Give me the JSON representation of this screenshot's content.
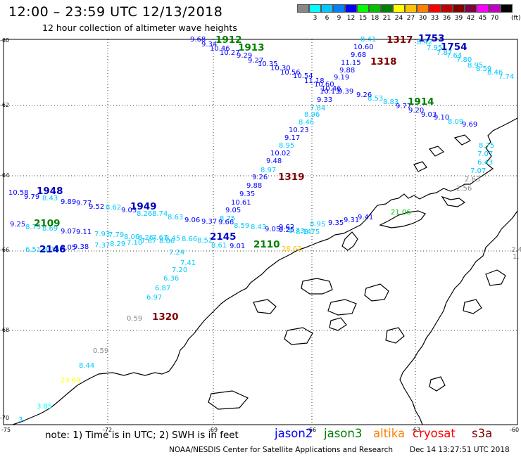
{
  "title": "12:00  –  23:59  UTC  12/13/2018",
  "subtitle": "12 hour collection of altimeter wave heights",
  "legend": {
    "colors": [
      "#888888",
      "#00ffff",
      "#00c8ff",
      "#0080ff",
      "#0000ff",
      "#00ff00",
      "#00c000",
      "#008000",
      "#ffff00",
      "#ffc000",
      "#ff8000",
      "#ff0000",
      "#c00000",
      "#800000",
      "#800040",
      "#ff00ff",
      "#c000c0",
      "#000000"
    ],
    "labels": [
      "",
      "3",
      "6",
      "9",
      "12",
      "15",
      "18",
      "21",
      "24",
      "27",
      "30",
      "33",
      "36",
      "39",
      "42",
      "45",
      "70",
      ""
    ],
    "unit": "(ft)"
  },
  "axes": {
    "lat_labels": [
      "-60",
      "-62",
      "-64",
      "-66",
      "-68",
      "-70"
    ],
    "lon_labels": [
      "-75",
      "-72",
      "-69",
      "-66",
      "-63",
      "-60"
    ]
  },
  "satellites": [
    {
      "name": "jason2",
      "color": "#0000ff"
    },
    {
      "name": "jason3",
      "color": "#008000"
    },
    {
      "name": "altika",
      "color": "#ff8000"
    },
    {
      "name": "cryosat",
      "color": "#ff0000"
    },
    {
      "name": "s3a",
      "color": "#800000"
    }
  ],
  "pass_times": [
    {
      "text": "1912",
      "color": "#008000"
    },
    {
      "text": "1913",
      "color": "#008000"
    },
    {
      "text": "1317",
      "color": "#800000"
    },
    {
      "text": "1753",
      "color": "#0000c0"
    },
    {
      "text": "1754",
      "color": "#0000c0"
    },
    {
      "text": "1318",
      "color": "#800000"
    },
    {
      "text": "1914",
      "color": "#008000"
    },
    {
      "text": "1319",
      "color": "#800000"
    },
    {
      "text": "1948",
      "color": "#0000c0"
    },
    {
      "text": "1949",
      "color": "#0000c0"
    },
    {
      "text": "2109",
      "color": "#008000"
    },
    {
      "text": "2146",
      "color": "#0000c0"
    },
    {
      "text": "2145",
      "color": "#0000c0"
    },
    {
      "text": "2110",
      "color": "#008000"
    },
    {
      "text": "1320",
      "color": "#800000"
    }
  ],
  "wave_heights": [
    {
      "text": "9.68",
      "color": "#0000ff"
    },
    {
      "text": "9.34",
      "color": "#0000ff"
    },
    {
      "text": "10.46",
      "color": "#0000ff"
    },
    {
      "text": "10.27",
      "color": "#0000ff"
    },
    {
      "text": "9.29",
      "color": "#0000ff"
    },
    {
      "text": "9.27",
      "color": "#0000ff"
    },
    {
      "text": "10.35",
      "color": "#0000ff"
    },
    {
      "text": "10.30",
      "color": "#0000ff"
    },
    {
      "text": "10.56",
      "color": "#0000ff"
    },
    {
      "text": "10.54",
      "color": "#0000ff"
    },
    {
      "text": "11.18",
      "color": "#0000ff"
    },
    {
      "text": "10.60",
      "color": "#0000ff"
    },
    {
      "text": "10.46",
      "color": "#0000ff"
    },
    {
      "text": "9.39",
      "color": "#0000ff"
    },
    {
      "text": "9.26",
      "color": "#0000ff"
    },
    {
      "text": "8.41",
      "color": "#00c8ff"
    },
    {
      "text": "10.60",
      "color": "#0000ff"
    },
    {
      "text": "9.68",
      "color": "#0000ff"
    },
    {
      "text": "11.15",
      "color": "#0000ff"
    },
    {
      "text": "9.88",
      "color": "#0000ff"
    },
    {
      "text": "9.19",
      "color": "#0000ff"
    },
    {
      "text": "10.13",
      "color": "#0000ff"
    },
    {
      "text": "9.33",
      "color": "#0000ff"
    },
    {
      "text": "8.42",
      "color": "#00c8ff"
    },
    {
      "text": "7.95",
      "color": "#00c8ff"
    },
    {
      "text": "7.87",
      "color": "#00c8ff"
    },
    {
      "text": "7.64",
      "color": "#00c8ff"
    },
    {
      "text": "7.80",
      "color": "#00c8ff"
    },
    {
      "text": "8.95",
      "color": "#00c8ff"
    },
    {
      "text": "8.59",
      "color": "#00c8ff"
    },
    {
      "text": "8.46",
      "color": "#00c8ff"
    },
    {
      "text": "7.74",
      "color": "#00c8ff"
    },
    {
      "text": "8.53",
      "color": "#00c8ff"
    },
    {
      "text": "8.83",
      "color": "#00c8ff"
    },
    {
      "text": "9.77",
      "color": "#0000ff"
    },
    {
      "text": "9.20",
      "color": "#0000ff"
    },
    {
      "text": "9.03",
      "color": "#0000ff"
    },
    {
      "text": "9.10",
      "color": "#0000ff"
    },
    {
      "text": "8.09",
      "color": "#00c8ff"
    },
    {
      "text": "9.69",
      "color": "#0000ff"
    },
    {
      "text": "7.84",
      "color": "#00c8ff"
    },
    {
      "text": "8.96",
      "color": "#00c8ff"
    },
    {
      "text": "8.46",
      "color": "#00c8ff"
    },
    {
      "text": "10.23",
      "color": "#0000ff"
    },
    {
      "text": "9.17",
      "color": "#0000ff"
    },
    {
      "text": "8.95",
      "color": "#00c8ff"
    },
    {
      "text": "10.02",
      "color": "#0000ff"
    },
    {
      "text": "9.48",
      "color": "#0000ff"
    },
    {
      "text": "8.97",
      "color": "#00c8ff"
    },
    {
      "text": "9.26",
      "color": "#0000ff"
    },
    {
      "text": "9.88",
      "color": "#0000ff"
    },
    {
      "text": "9.35",
      "color": "#0000ff"
    },
    {
      "text": "10.61",
      "color": "#0000ff"
    },
    {
      "text": "9.05",
      "color": "#0000ff"
    },
    {
      "text": "8.75",
      "color": "#00c8ff"
    },
    {
      "text": "8.75",
      "color": "#00c8ff"
    },
    {
      "text": "7.07",
      "color": "#00c8ff"
    },
    {
      "text": "6.43",
      "color": "#00c8ff"
    },
    {
      "text": "7.07",
      "color": "#00c8ff"
    },
    {
      "text": "2.63",
      "color": "#888888"
    },
    {
      "text": "2.56",
      "color": "#888888"
    },
    {
      "text": "10.58",
      "color": "#0000ff"
    },
    {
      "text": "9.79",
      "color": "#0000ff"
    },
    {
      "text": "8.43",
      "color": "#00c8ff"
    },
    {
      "text": "9.89",
      "color": "#0000ff"
    },
    {
      "text": "9.77",
      "color": "#0000ff"
    },
    {
      "text": "9.52",
      "color": "#0000ff"
    },
    {
      "text": "8.62",
      "color": "#00c8ff"
    },
    {
      "text": "9.03",
      "color": "#0000ff"
    },
    {
      "text": "8.26",
      "color": "#00c8ff"
    },
    {
      "text": "8.74",
      "color": "#00c8ff"
    },
    {
      "text": "8.63",
      "color": "#00c8ff"
    },
    {
      "text": "9.06",
      "color": "#0000ff"
    },
    {
      "text": "9.37",
      "color": "#0000ff"
    },
    {
      "text": "9.66",
      "color": "#0000ff"
    },
    {
      "text": "9.25",
      "color": "#0000ff"
    },
    {
      "text": "8.75",
      "color": "#00c8ff"
    },
    {
      "text": "8.69",
      "color": "#00c8ff"
    },
    {
      "text": "9.07",
      "color": "#0000ff"
    },
    {
      "text": "9.11",
      "color": "#0000ff"
    },
    {
      "text": "7.93",
      "color": "#00c8ff"
    },
    {
      "text": "7.79",
      "color": "#00c8ff"
    },
    {
      "text": "8.06",
      "color": "#00c8ff"
    },
    {
      "text": "8.26",
      "color": "#00c8ff"
    },
    {
      "text": "7.67",
      "color": "#00c8ff"
    },
    {
      "text": "8.45",
      "color": "#00c8ff"
    },
    {
      "text": "8.66",
      "color": "#00c8ff"
    },
    {
      "text": "8.52",
      "color": "#00c8ff"
    },
    {
      "text": "6.51",
      "color": "#00c8ff"
    },
    {
      "text": "8.39",
      "color": "#00c8ff"
    },
    {
      "text": "9.05",
      "color": "#0000ff"
    },
    {
      "text": "9.38",
      "color": "#0000ff"
    },
    {
      "text": "7.37",
      "color": "#00c8ff"
    },
    {
      "text": "8.29",
      "color": "#00c8ff"
    },
    {
      "text": "7.10",
      "color": "#00c8ff"
    },
    {
      "text": "7.67",
      "color": "#00c8ff"
    },
    {
      "text": "8.06",
      "color": "#00c8ff"
    },
    {
      "text": "8.61",
      "color": "#00c8ff"
    },
    {
      "text": "9.01",
      "color": "#0000ff"
    },
    {
      "text": "8.59",
      "color": "#00c8ff"
    },
    {
      "text": "8.43",
      "color": "#00c8ff"
    },
    {
      "text": "9.05",
      "color": "#0000ff"
    },
    {
      "text": "9.25",
      "color": "#0000ff"
    },
    {
      "text": "8.73",
      "color": "#00c8ff"
    },
    {
      "text": "8.75",
      "color": "#00c8ff"
    },
    {
      "text": "9.62",
      "color": "#0000ff"
    },
    {
      "text": "8.14",
      "color": "#00c8ff"
    },
    {
      "text": "8.95",
      "color": "#00c8ff"
    },
    {
      "text": "9.35",
      "color": "#0000ff"
    },
    {
      "text": "9.31",
      "color": "#0000ff"
    },
    {
      "text": "9.41",
      "color": "#0000ff"
    },
    {
      "text": "21.06",
      "color": "#00c000"
    },
    {
      "text": "28.62",
      "color": "#ffc000"
    },
    {
      "text": "7.24",
      "color": "#00c8ff"
    },
    {
      "text": "7.41",
      "color": "#00c8ff"
    },
    {
      "text": "7.20",
      "color": "#00c8ff"
    },
    {
      "text": "6.36",
      "color": "#00c8ff"
    },
    {
      "text": "6.87",
      "color": "#00c8ff"
    },
    {
      "text": "6.97",
      "color": "#00c8ff"
    },
    {
      "text": "0.59",
      "color": "#888888"
    },
    {
      "text": "0.59",
      "color": "#888888"
    },
    {
      "text": "8.44",
      "color": "#00c8ff"
    },
    {
      "text": "23.69",
      "color": "#ffff00"
    },
    {
      "text": "3.85",
      "color": "#00ffff"
    },
    {
      "text": "3.",
      "color": "#00c8ff"
    },
    {
      "text": "2.4",
      "color": "#888888"
    },
    {
      "text": "1.",
      "color": "#888888"
    }
  ],
  "footer": {
    "note": "note:  1) Time is in UTC;  2) SWH is in feet",
    "credit": "NOAA/NESDIS Center for Satellite Applications and Research",
    "stamp": "Dec 14 13:27:51 UTC 2018"
  }
}
